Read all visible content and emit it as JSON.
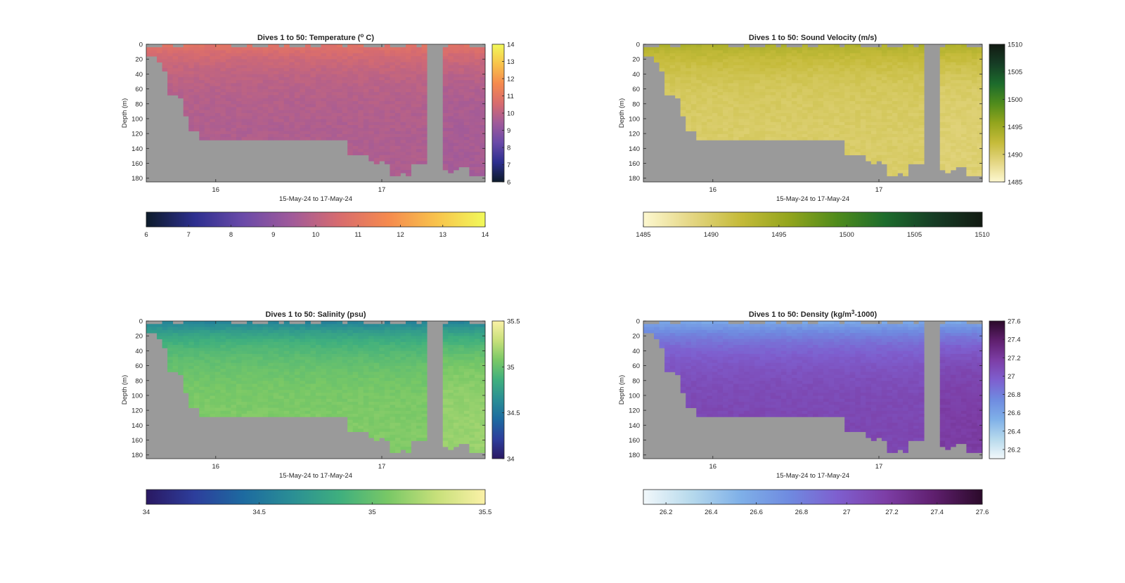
{
  "chart_data": [
    {
      "type": "heatmap",
      "title_prefix": "Dives 1 to 50: Temperature (",
      "title_sup": "o",
      "title_suffix": " C)",
      "xlabel": "15-May-24 to 17-May-24",
      "ylabel": "Depth (m)",
      "xticks": [
        "16",
        "17"
      ],
      "yticks": [
        "0",
        "20",
        "40",
        "60",
        "80",
        "100",
        "120",
        "140",
        "160",
        "180"
      ],
      "ylim": [
        0,
        185
      ],
      "colorbar_right_ticks": [
        "6",
        "7",
        "8",
        "9",
        "10",
        "11",
        "12",
        "13",
        "14"
      ],
      "colorbar_bottom_ticks": [
        "6",
        "7",
        "8",
        "9",
        "10",
        "11",
        "12",
        "13",
        "14"
      ],
      "clim": [
        6,
        14
      ],
      "colormap": [
        "#0d1b2a",
        "#2d2f8f",
        "#6a4aa8",
        "#a05a9a",
        "#d86c6e",
        "#f58a4e",
        "#f8c34c",
        "#f1f95a"
      ],
      "field": {
        "surface": 10.9,
        "deep": 9.7,
        "blob_center": 9.6
      },
      "nodata_color": "#9a9a9a"
    },
    {
      "type": "heatmap",
      "title_prefix": "Dives 1 to 50: Sound Velocity (m/s)",
      "title_sup": "",
      "title_suffix": "",
      "xlabel": "15-May-24 to 17-May-24",
      "ylabel": "Depth (m)",
      "xticks": [
        "16",
        "17"
      ],
      "yticks": [
        "0",
        "20",
        "40",
        "60",
        "80",
        "100",
        "120",
        "140",
        "160",
        "180"
      ],
      "ylim": [
        0,
        185
      ],
      "colorbar_right_ticks": [
        "1485",
        "1490",
        "1495",
        "1500",
        "1505",
        "1510"
      ],
      "colorbar_bottom_ticks": [
        "1485",
        "1490",
        "1495",
        "1500",
        "1505",
        "1510"
      ],
      "clim": [
        1485,
        1510
      ],
      "colormap": [
        "#fdf8d0",
        "#e4d683",
        "#c5bb3a",
        "#93a51d",
        "#4f8b1c",
        "#1c6b2c",
        "#163d25",
        "#121a12"
      ],
      "field": {
        "surface": 1493.8,
        "deep": 1489.8,
        "blob_center": 1490.2
      },
      "nodata_color": "#9a9a9a"
    },
    {
      "type": "heatmap",
      "title_prefix": "Dives 1 to 50: Salinity (psu)",
      "title_sup": "",
      "title_suffix": "",
      "xlabel": "15-May-24 to 17-May-24",
      "ylabel": "Depth (m)",
      "xticks": [
        "16",
        "17"
      ],
      "yticks": [
        "0",
        "20",
        "40",
        "60",
        "80",
        "100",
        "120",
        "140",
        "160",
        "180"
      ],
      "ylim": [
        0,
        185
      ],
      "colorbar_right_ticks": [
        "34",
        "34.5",
        "35",
        "35.5"
      ],
      "colorbar_bottom_ticks": [
        "34",
        "34.5",
        "35",
        "35.5"
      ],
      "clim": [
        34,
        35.5
      ],
      "colormap": [
        "#2a1862",
        "#2d3e9c",
        "#1d6aa0",
        "#2a8e95",
        "#3faf7e",
        "#79c866",
        "#c7e07a",
        "#fbf1a7"
      ],
      "field": {
        "surface": 34.55,
        "deep": 35.1,
        "blob_center": 35.15
      },
      "nodata_color": "#9a9a9a"
    },
    {
      "type": "heatmap",
      "title_prefix": "Dives 1 to 50: Density (kg/m",
      "title_sup": "3",
      "title_suffix": "-1000)",
      "xlabel": "15-May-24 to 17-May-24",
      "ylabel": "Depth (m)",
      "xticks": [
        "16",
        "17"
      ],
      "yticks": [
        "0",
        "20",
        "40",
        "60",
        "80",
        "100",
        "120",
        "140",
        "160",
        "180"
      ],
      "ylim": [
        0,
        185
      ],
      "colorbar_right_ticks": [
        "26.2",
        "26.4",
        "26.6",
        "26.8",
        "27",
        "27.2",
        "27.4",
        "27.6"
      ],
      "colorbar_bottom_ticks": [
        "26.2",
        "26.4",
        "26.6",
        "26.8",
        "27",
        "27.2",
        "27.4",
        "27.6"
      ],
      "clim": [
        26.1,
        27.6
      ],
      "colormap": [
        "#f2f8fb",
        "#b6d9ec",
        "#7fb0e8",
        "#6f8be0",
        "#7e5fcf",
        "#7d3ea6",
        "#5f1f6e",
        "#2b0a2a"
      ],
      "field": {
        "surface": 26.55,
        "deep": 27.12,
        "blob_center": 27.1
      },
      "nodata_color": "#9a9a9a"
    }
  ]
}
